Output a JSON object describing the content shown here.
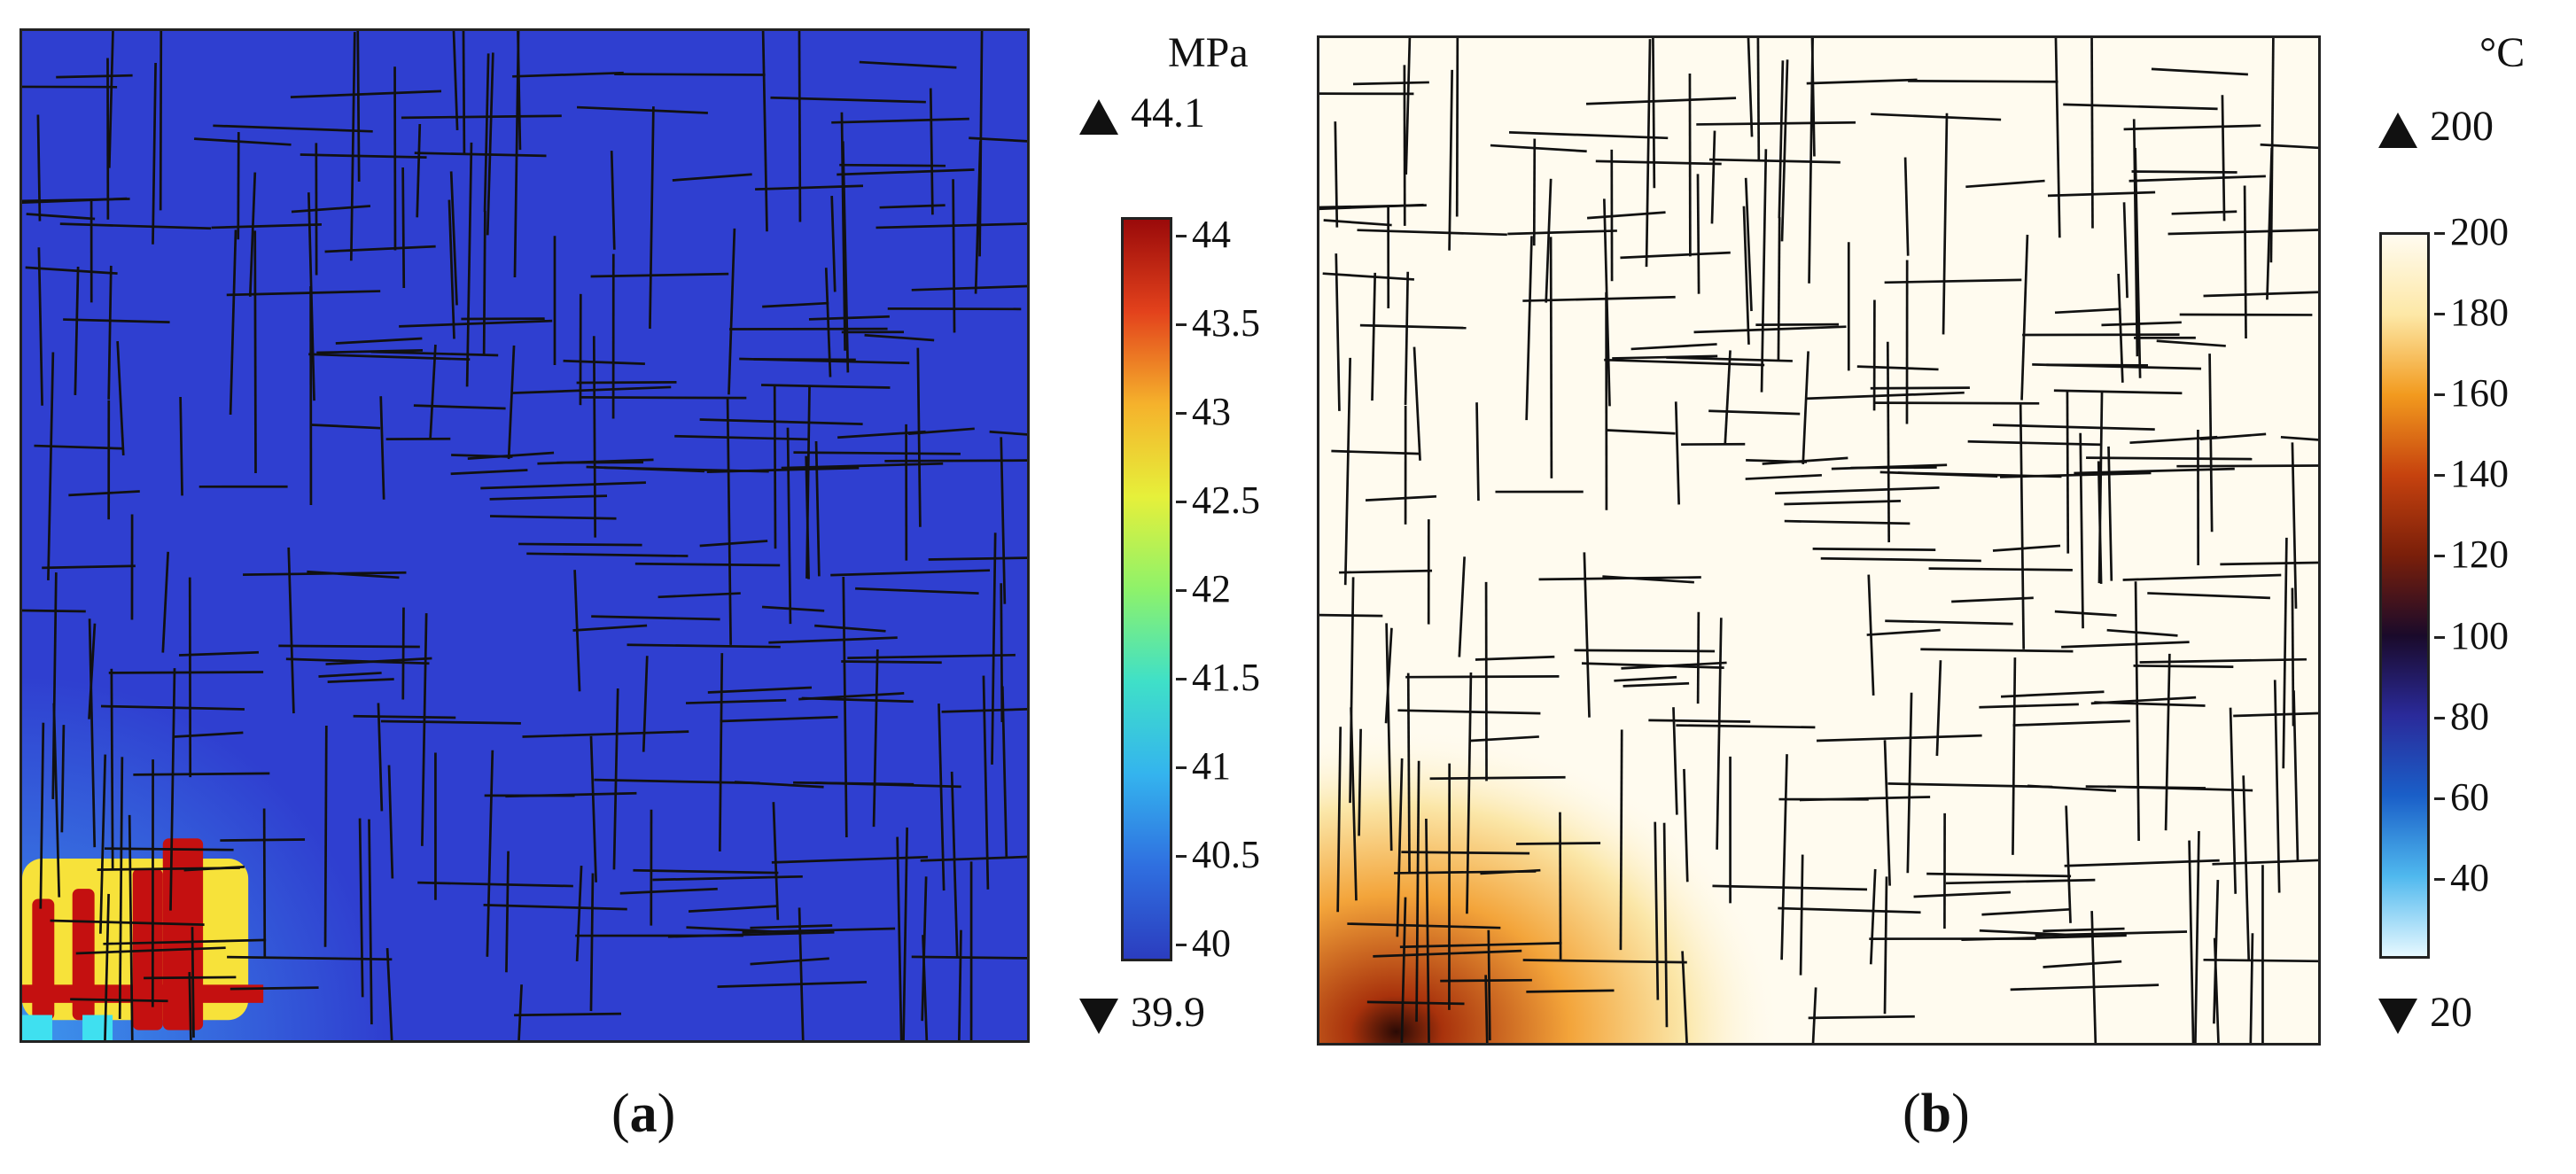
{
  "chart_data": [
    {
      "panel": "(a)",
      "panel_letter": "a",
      "type": "heatmap",
      "unit": "MPa",
      "max_marker": "44.1",
      "min_marker": "39.9",
      "colorbar": {
        "range": [
          39.9,
          44.1
        ],
        "ticks": [
          {
            "value": 44,
            "label": "44"
          },
          {
            "value": 43.5,
            "label": "43.5"
          },
          {
            "value": 43,
            "label": "43"
          },
          {
            "value": 42.5,
            "label": "42.5"
          },
          {
            "value": 42,
            "label": "42"
          },
          {
            "value": 41.5,
            "label": "41.5"
          },
          {
            "value": 41,
            "label": "41"
          },
          {
            "value": 40.5,
            "label": "40.5"
          },
          {
            "value": 40,
            "label": "40"
          }
        ],
        "colormap": [
          "#2b3dbf",
          "#2f6fe0",
          "#34b4ee",
          "#3fe0c8",
          "#8ef26a",
          "#e6f03a",
          "#f5b22c",
          "#e3421c",
          "#9a0a0a"
        ]
      },
      "field_colors": {
        "background": "#2f3fd0",
        "glow": "#3fa0f0",
        "hot": "#c41010",
        "warm": "#f7e23a"
      },
      "fracture_color": "#111111"
    },
    {
      "panel": "(b)",
      "panel_letter": "b",
      "type": "heatmap",
      "unit": "°C",
      "max_marker": "200",
      "min_marker": "20",
      "colorbar": {
        "range": [
          20,
          200
        ],
        "ticks": [
          {
            "value": 200,
            "label": "200"
          },
          {
            "value": 180,
            "label": "180"
          },
          {
            "value": 160,
            "label": "160"
          },
          {
            "value": 140,
            "label": "140"
          },
          {
            "value": 120,
            "label": "120"
          },
          {
            "value": 100,
            "label": "100"
          },
          {
            "value": 80,
            "label": "80"
          },
          {
            "value": 60,
            "label": "60"
          },
          {
            "value": 40,
            "label": "40"
          }
        ],
        "colormap": [
          "#e6f8ff",
          "#4fb8ee",
          "#1a5fc8",
          "#2a2a9a",
          "#1a0a2a",
          "#7a1f0a",
          "#c6420e",
          "#f29a1e",
          "#fde8a6",
          "#fffbf0"
        ]
      },
      "field_colors": {
        "background": "#fffbef",
        "warm": "#fbe7a9",
        "hot": "#a8320c",
        "core": "#2a0a05"
      },
      "fracture_color": "#111111"
    }
  ]
}
